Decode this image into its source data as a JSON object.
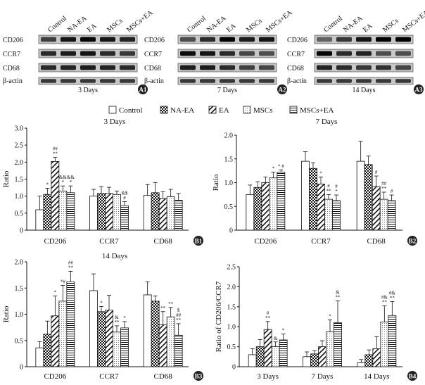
{
  "groups": [
    "Control",
    "NA-EA",
    "EA",
    "MSCs",
    "MSCs+EA"
  ],
  "blots": [
    {
      "panel": "A1",
      "caption": "3 Days",
      "rows": [
        "CD206",
        "CCR7",
        "CD68",
        "β-actin"
      ],
      "show_lane_labels": true
    },
    {
      "panel": "A2",
      "caption": "7 Days",
      "rows": [
        "CD206",
        "CCR7",
        "CD68",
        "β-actin"
      ],
      "show_lane_labels": true
    },
    {
      "panel": "A3",
      "caption": "14 Days",
      "rows": [
        "CD206",
        "CCR7",
        "CD68",
        "β-actin"
      ],
      "show_lane_labels": true
    }
  ],
  "legend": [
    "Control",
    "NA-EA",
    "EA",
    "MSCs",
    "MSCs+EA"
  ],
  "chart_data": [
    {
      "panel": "B1",
      "type": "bar",
      "title": "3 Days",
      "ylabel": "Ratio",
      "ylim": [
        0,
        3.0
      ],
      "yticks": [
        "0",
        "0.5",
        "1.0",
        "1.5",
        "2.0",
        "2.5",
        "3.0"
      ],
      "categories": [
        "CD206",
        "CCR7",
        "CD68"
      ],
      "series": [
        {
          "name": "Control",
          "values": [
            0.6,
            1.0,
            1.02
          ],
          "errors": [
            0.4,
            0.2,
            0.32
          ]
        },
        {
          "name": "NA-EA",
          "values": [
            1.05,
            1.08,
            1.1
          ],
          "errors": [
            0.18,
            0.2,
            0.3
          ]
        },
        {
          "name": "EA",
          "values": [
            2.02,
            1.08,
            0.93
          ],
          "errors": [
            0.12,
            0.18,
            0.2
          ]
        },
        {
          "name": "MSCs",
          "values": [
            1.15,
            1.05,
            0.98
          ],
          "errors": [
            0.15,
            0.1,
            0.22
          ]
        },
        {
          "name": "MSCs+EA",
          "values": [
            1.1,
            0.72,
            0.88
          ],
          "errors": [
            0.2,
            0.12,
            0.2
          ]
        }
      ],
      "annotations": [
        {
          "cat": 0,
          "ser": 1,
          "text": [
            "*"
          ]
        },
        {
          "cat": 0,
          "ser": 2,
          "text": [
            "##",
            "**"
          ]
        },
        {
          "cat": 0,
          "ser": 3,
          "text": [
            "&&",
            "*"
          ]
        },
        {
          "cat": 0,
          "ser": 4,
          "text": [
            "&&",
            "*"
          ]
        },
        {
          "cat": 1,
          "ser": 4,
          "text": [
            "&$",
            "#"
          ]
        }
      ]
    },
    {
      "panel": "B2",
      "type": "bar",
      "title": "7 Days",
      "ylabel": "Ratio",
      "ylim": [
        0,
        2.0
      ],
      "yticks": [
        "0",
        "0.5",
        "1.0",
        "1.5",
        "2.0"
      ],
      "categories": [
        "CD206",
        "CCR7",
        "CD68"
      ],
      "series": [
        {
          "name": "Control",
          "values": [
            0.75,
            1.45,
            1.45
          ],
          "errors": [
            0.2,
            0.2,
            0.42
          ]
        },
        {
          "name": "NA-EA",
          "values": [
            0.9,
            1.3,
            1.38
          ],
          "errors": [
            0.12,
            0.12,
            0.18
          ]
        },
        {
          "name": "EA",
          "values": [
            1.0,
            0.97,
            0.92
          ],
          "errors": [
            0.12,
            0.15,
            0.22
          ]
        },
        {
          "name": "MSCs",
          "values": [
            1.1,
            0.65,
            0.65
          ],
          "errors": [
            0.12,
            0.1,
            0.15
          ]
        },
        {
          "name": "MSCs+EA",
          "values": [
            1.22,
            0.62,
            0.62
          ],
          "errors": [
            0.05,
            0.12,
            0.12
          ]
        }
      ],
      "annotations": [
        {
          "cat": 0,
          "ser": 3,
          "text": [
            "*"
          ]
        },
        {
          "cat": 0,
          "ser": 4,
          "text": [
            "* #"
          ]
        },
        {
          "cat": 1,
          "ser": 2,
          "text": [
            "*"
          ]
        },
        {
          "cat": 1,
          "ser": 3,
          "text": [
            "#",
            "**"
          ]
        },
        {
          "cat": 1,
          "ser": 4,
          "text": [
            "#",
            "*"
          ]
        },
        {
          "cat": 2,
          "ser": 2,
          "text": [
            "#"
          ]
        },
        {
          "cat": 2,
          "ser": 3,
          "text": [
            "##",
            "**"
          ]
        },
        {
          "cat": 2,
          "ser": 4,
          "text": [
            "#"
          ]
        }
      ]
    },
    {
      "panel": "B3",
      "type": "bar",
      "title": "14 Days",
      "ylabel": "Ratio",
      "ylim": [
        0,
        2.0
      ],
      "yticks": [
        "0",
        "0.5",
        "1.0",
        "1.5",
        "2.0"
      ],
      "categories": [
        "CD206",
        "CCR7",
        "CD68"
      ],
      "series": [
        {
          "name": "Control",
          "values": [
            0.36,
            1.45,
            1.37
          ],
          "errors": [
            0.12,
            0.32,
            0.25
          ]
        },
        {
          "name": "NA-EA",
          "values": [
            0.62,
            1.05,
            1.25
          ],
          "errors": [
            0.25,
            0.1,
            0.1
          ]
        },
        {
          "name": "EA",
          "values": [
            0.97,
            1.08,
            0.8
          ],
          "errors": [
            0.38,
            0.28,
            0.25
          ]
        },
        {
          "name": "MSCs",
          "values": [
            1.25,
            0.66,
            0.95
          ],
          "errors": [
            0.3,
            0.12,
            0.18
          ]
        },
        {
          "name": "MSCs+EA",
          "values": [
            1.62,
            0.74,
            0.6
          ],
          "errors": [
            0.2,
            0.12,
            0.22
          ]
        }
      ],
      "annotations": [
        {
          "cat": 0,
          "ser": 2,
          "text": [
            "*"
          ]
        },
        {
          "cat": 0,
          "ser": 3,
          "text": [
            "*#"
          ]
        },
        {
          "cat": 0,
          "ser": 4,
          "text": [
            "##",
            "**"
          ]
        },
        {
          "cat": 1,
          "ser": 1,
          "text": [
            "*"
          ]
        },
        {
          "cat": 1,
          "ser": 3,
          "text": [
            "&",
            "**"
          ]
        },
        {
          "cat": 1,
          "ser": 4,
          "text": [
            "*"
          ]
        },
        {
          "cat": 2,
          "ser": 2,
          "text": [
            "**"
          ]
        },
        {
          "cat": 2,
          "ser": 3,
          "text": [
            "**"
          ]
        },
        {
          "cat": 2,
          "ser": 4,
          "text": [
            "$",
            "##",
            "**"
          ]
        }
      ]
    },
    {
      "panel": "B4",
      "type": "bar",
      "title": "",
      "ylabel": "Ratio of CD206/CCR7",
      "ylim": [
        0,
        2.5
      ],
      "yticks": [
        "0",
        "0.5",
        "1.0",
        "1.5",
        "2.0",
        "2.5"
      ],
      "categories": [
        "3 Days",
        "7 Days",
        "14 Days"
      ],
      "series": [
        {
          "name": "Control",
          "values": [
            0.3,
            0.25,
            0.1
          ],
          "errors": [
            0.15,
            0.12,
            0.08
          ]
        },
        {
          "name": "NA-EA",
          "values": [
            0.5,
            0.32,
            0.3
          ],
          "errors": [
            0.18,
            0.08,
            0.12
          ]
        },
        {
          "name": "EA",
          "values": [
            0.93,
            0.5,
            0.45
          ],
          "errors": [
            0.2,
            0.15,
            0.3
          ]
        },
        {
          "name": "MSCs",
          "values": [
            0.5,
            0.87,
            1.12
          ],
          "errors": [
            0.12,
            0.3,
            0.4
          ]
        },
        {
          "name": "MSCs+EA",
          "values": [
            0.67,
            1.1,
            1.28
          ],
          "errors": [
            0.15,
            0.55,
            0.35
          ]
        }
      ],
      "annotations": [
        {
          "cat": 0,
          "ser": 2,
          "text": [
            "#",
            "**"
          ]
        },
        {
          "cat": 0,
          "ser": 3,
          "text": [
            "&"
          ]
        },
        {
          "cat": 0,
          "ser": 4,
          "text": [
            "*"
          ]
        },
        {
          "cat": 1,
          "ser": 3,
          "text": [
            "*"
          ]
        },
        {
          "cat": 1,
          "ser": 4,
          "text": [
            "&",
            "**"
          ]
        },
        {
          "cat": 2,
          "ser": 3,
          "text": [
            "#&",
            "**"
          ]
        },
        {
          "cat": 2,
          "ser": 4,
          "text": [
            "#&",
            "**"
          ]
        }
      ]
    }
  ]
}
